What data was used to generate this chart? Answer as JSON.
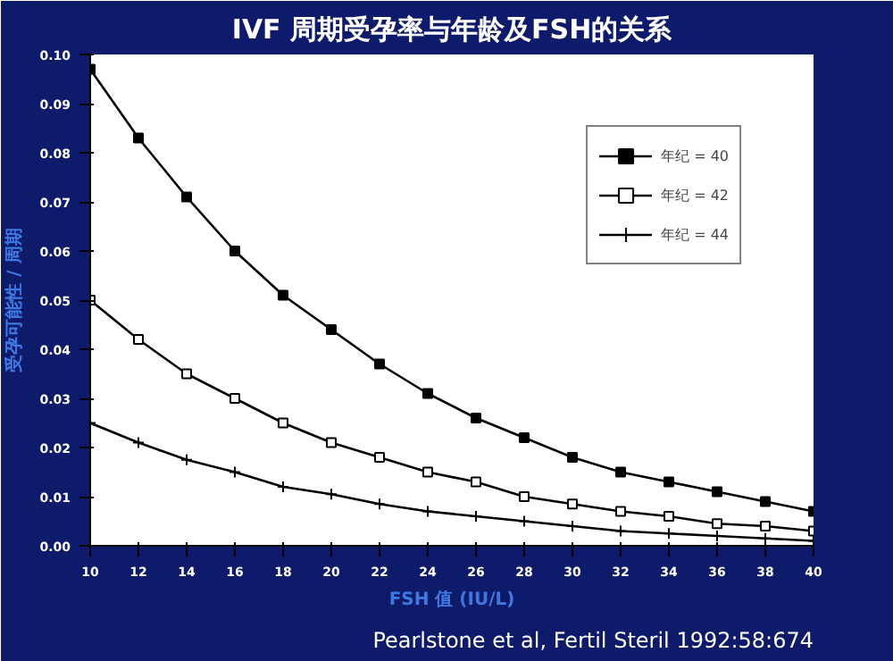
{
  "chart_data": {
    "type": "line",
    "title": "IVF 周期受孕率与年龄及FSH的关系",
    "xlabel": "FSH 值 (IU/L)",
    "ylabel": "受孕可能性 / 周期",
    "x": [
      10,
      12,
      14,
      16,
      18,
      20,
      22,
      24,
      26,
      28,
      30,
      32,
      34,
      36,
      38,
      40
    ],
    "series": [
      {
        "name": "年纪 = 40",
        "color": "#000000",
        "marker": "square",
        "values": [
          0.097,
          0.083,
          0.071,
          0.06,
          0.051,
          0.044,
          0.037,
          0.031,
          0.026,
          0.022,
          0.018,
          0.015,
          0.013,
          0.011,
          0.009,
          0.007
        ]
      },
      {
        "name": "年纪 = 42",
        "color": "#000000",
        "marker": "square",
        "values": [
          0.05,
          0.042,
          0.035,
          0.03,
          0.025,
          0.021,
          0.018,
          0.015,
          0.013,
          0.01,
          0.0085,
          0.007,
          0.006,
          0.0045,
          0.004,
          0.003
        ]
      },
      {
        "name": "年纪 = 44",
        "color": "#000000",
        "marker": "cross",
        "values": [
          0.025,
          0.021,
          0.0175,
          0.015,
          0.012,
          0.0105,
          0.0085,
          0.007,
          0.006,
          0.005,
          0.004,
          0.003,
          0.0025,
          0.002,
          0.0015,
          0.001
        ]
      }
    ],
    "xlim": [
      10,
      40
    ],
    "ylim": [
      0,
      0.1
    ],
    "xticks": [
      10,
      12,
      14,
      16,
      18,
      20,
      22,
      24,
      26,
      28,
      30,
      32,
      34,
      36,
      38,
      40
    ],
    "yticks": [
      {
        "value": 0,
        "label": "0.00"
      },
      {
        "value": 0.01,
        "label": "0.01"
      },
      {
        "value": 0.02,
        "label": "0.02"
      },
      {
        "value": 0.03,
        "label": "0.03"
      },
      {
        "value": 0.04,
        "label": "0.04"
      },
      {
        "value": 0.05,
        "label": "0.05"
      },
      {
        "value": 0.06,
        "label": "0.06"
      },
      {
        "value": 0.07,
        "label": "0.07"
      },
      {
        "value": 0.08,
        "label": "0.08"
      },
      {
        "value": 0.09,
        "label": "0.09"
      },
      {
        "value": 0.1,
        "label": "0.10"
      }
    ],
    "grid": false,
    "legend": "top right",
    "line_style": "solid",
    "annotations": [
      "Pearlstone et al, Fertil Steril 1992:58:674"
    ]
  }
}
